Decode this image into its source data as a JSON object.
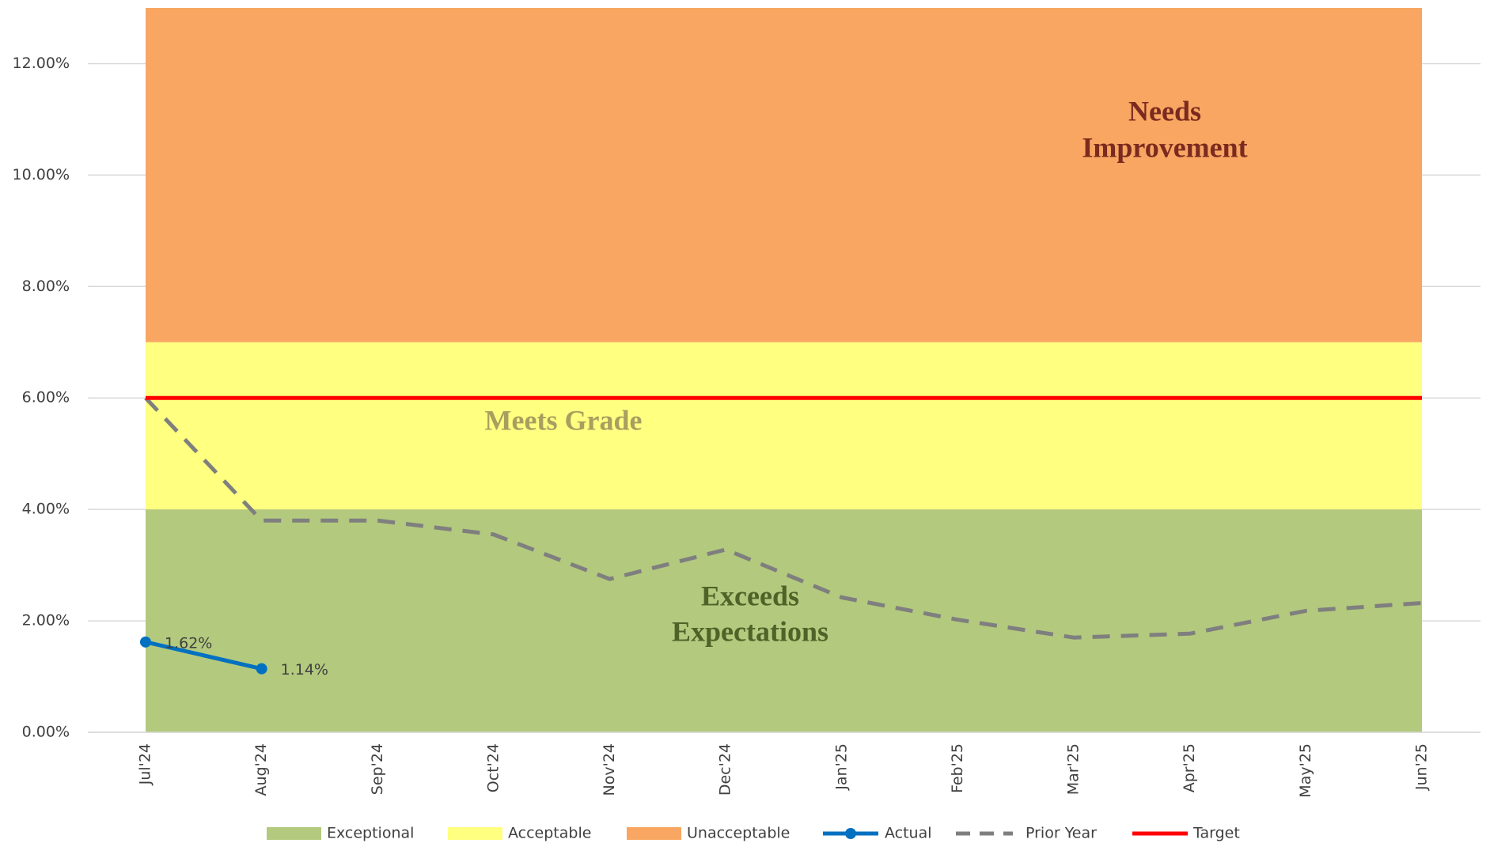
{
  "chart_data": {
    "type": "line",
    "categories": [
      "Jul'24",
      "Aug'24",
      "Sep'24",
      "Oct'24",
      "Nov'24",
      "Dec'24",
      "Jan'25",
      "Feb'25",
      "Mar'25",
      "Apr'25",
      "May'25",
      "Jun'25"
    ],
    "ylim": [
      0,
      13
    ],
    "yticks": [
      {
        "value": 0,
        "label": "0.00%"
      },
      {
        "value": 2,
        "label": "2.00%"
      },
      {
        "value": 4,
        "label": "4.00%"
      },
      {
        "value": 6,
        "label": "6.00%"
      },
      {
        "value": 8,
        "label": "8.00%"
      },
      {
        "value": 10,
        "label": "10.00%"
      },
      {
        "value": 12,
        "label": "12.00%"
      }
    ],
    "grid": true,
    "legend": "bottom",
    "series": [
      {
        "name": "Exceptional",
        "kind": "stacked-area",
        "color": "#b3c97e",
        "values": [
          4,
          4,
          4,
          4,
          4,
          4,
          4,
          4,
          4,
          4,
          4,
          4
        ]
      },
      {
        "name": "Acceptable",
        "kind": "stacked-area",
        "color": "#ffff80",
        "values": [
          3,
          3,
          3,
          3,
          3,
          3,
          3,
          3,
          3,
          3,
          3,
          3
        ]
      },
      {
        "name": "Unacceptable",
        "kind": "stacked-area",
        "color": "#f8a662",
        "values": [
          6,
          6,
          6,
          6,
          6,
          6,
          6,
          6,
          6,
          6,
          6,
          6
        ]
      },
      {
        "name": "Actual",
        "kind": "line-marker",
        "color": "#0070c0",
        "values": [
          1.62,
          1.14,
          null,
          null,
          null,
          null,
          null,
          null,
          null,
          null,
          null,
          null
        ],
        "value_labels": [
          "1.62%",
          "1.14%",
          null,
          null,
          null,
          null,
          null,
          null,
          null,
          null,
          null,
          null
        ]
      },
      {
        "name": "Prior Year",
        "kind": "dashed-line",
        "color": "#7f7f7f",
        "values": [
          6.0,
          3.8,
          3.8,
          3.55,
          2.75,
          3.28,
          2.42,
          2.02,
          1.7,
          1.77,
          2.18,
          2.32
        ]
      },
      {
        "name": "Target",
        "kind": "line",
        "color": "#ff0000",
        "values": [
          6,
          6,
          6,
          6,
          6,
          6,
          6,
          6,
          6,
          6,
          6,
          6
        ]
      }
    ],
    "annotations": [
      {
        "lines": [
          "Needs",
          "Improvement"
        ],
        "color": "#7b2a1f"
      },
      {
        "lines": [
          "Meets Grade"
        ],
        "color": "#a89e5f"
      },
      {
        "lines": [
          "Exceeds",
          "Expectations"
        ],
        "color": "#4f6228"
      }
    ]
  }
}
